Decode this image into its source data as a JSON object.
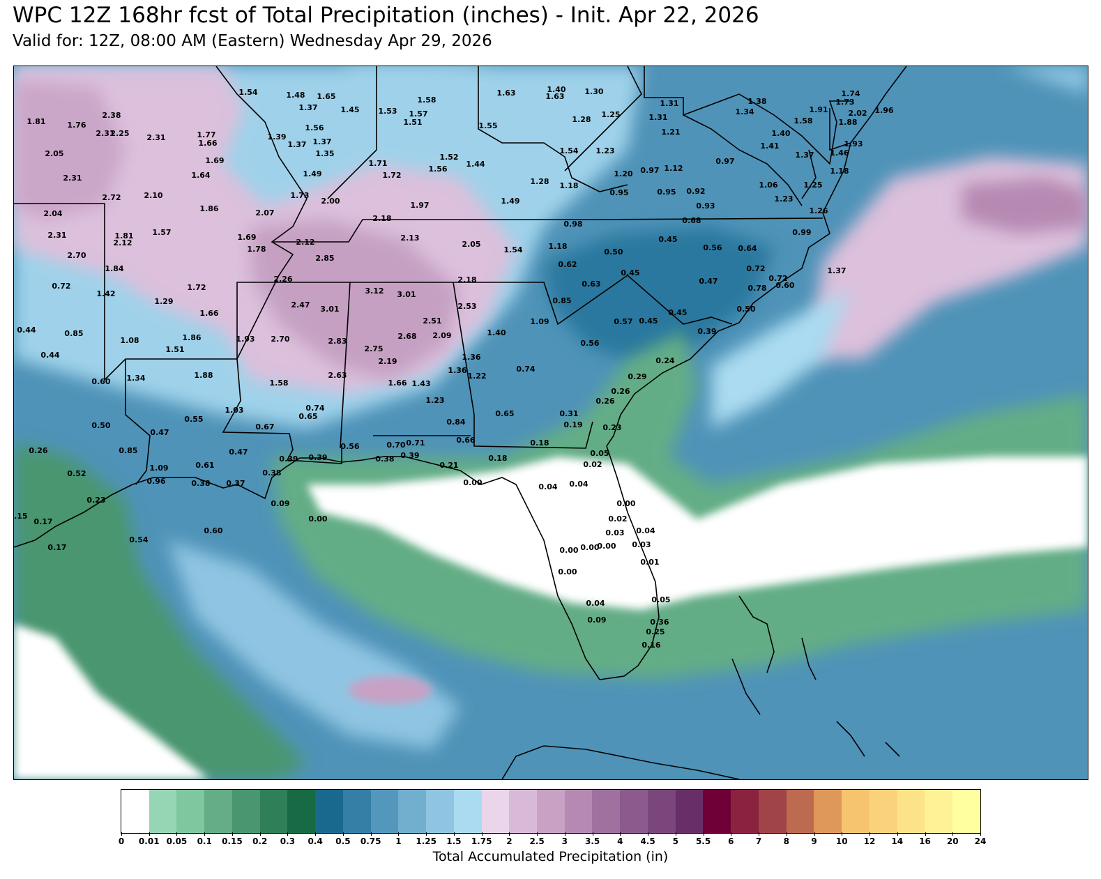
{
  "title": "WPC 12Z 168hr fcst of Total Precipitation (inches) - Init. Apr 22, 2026",
  "subtitle": "Valid for: 12Z, 08:00 AM (Eastern) Wednesday Apr 29, 2026",
  "colorbar": {
    "label": "Total Accumulated Precipitation (in)",
    "ticks": [
      "0",
      "0.01",
      "0.05",
      "0.1",
      "0.15",
      "0.2",
      "0.3",
      "0.4",
      "0.5",
      "0.75",
      "1",
      "1.25",
      "1.5",
      "1.75",
      "2",
      "2.5",
      "3",
      "3.5",
      "4",
      "4.5",
      "5",
      "5.5",
      "6",
      "7",
      "8",
      "9",
      "10",
      "12",
      "14",
      "16",
      "20",
      "24"
    ],
    "colors": [
      "#ffffff",
      "#96d6b4",
      "#7fc79f",
      "#64ad86",
      "#4a9670",
      "#2f7f58",
      "#176a43",
      "#19698f",
      "#357fa6",
      "#5497bd",
      "#72aece",
      "#8fc5e2",
      "#aadbf0",
      "#ead5ea",
      "#d9b9d8",
      "#c8a1c5",
      "#b689b2",
      "#a0709f",
      "#8c5a8d",
      "#7a467c",
      "#682e68",
      "#6e0037",
      "#8a2340",
      "#a14448",
      "#bc6a50",
      "#de985a",
      "#f6c46e",
      "#fad27b",
      "#fde387",
      "#fef296",
      "#ffffa0"
    ]
  },
  "map_values": [
    {
      "v": "1.54",
      "x": 322,
      "y": 37
    },
    {
      "v": "1.48",
      "x": 390,
      "y": 41
    },
    {
      "v": "1.65",
      "x": 434,
      "y": 43
    },
    {
      "v": "1.58",
      "x": 578,
      "y": 48
    },
    {
      "v": "1.63",
      "x": 692,
      "y": 38
    },
    {
      "v": "1.40",
      "x": 764,
      "y": 33
    },
    {
      "v": "1.63",
      "x": 762,
      "y": 43
    },
    {
      "v": "1.30",
      "x": 818,
      "y": 36
    },
    {
      "v": "2.38",
      "x": 126,
      "y": 70
    },
    {
      "v": "1.37",
      "x": 408,
      "y": 59
    },
    {
      "v": "1.45",
      "x": 468,
      "y": 62
    },
    {
      "v": "1.53",
      "x": 522,
      "y": 64
    },
    {
      "v": "1.57",
      "x": 566,
      "y": 68
    },
    {
      "v": "1.25",
      "x": 842,
      "y": 69
    },
    {
      "v": "1.31",
      "x": 926,
      "y": 53
    },
    {
      "v": "1.31",
      "x": 910,
      "y": 73
    },
    {
      "v": "1.81",
      "x": 18,
      "y": 79
    },
    {
      "v": "1.76",
      "x": 76,
      "y": 84
    },
    {
      "v": "2.31",
      "x": 117,
      "y": 96
    },
    {
      "v": "2.25",
      "x": 138,
      "y": 96
    },
    {
      "v": "2.31",
      "x": 190,
      "y": 102
    },
    {
      "v": "1.77",
      "x": 262,
      "y": 98
    },
    {
      "v": "1.39",
      "x": 363,
      "y": 101
    },
    {
      "v": "1.56",
      "x": 417,
      "y": 88
    },
    {
      "v": "1.51",
      "x": 558,
      "y": 80
    },
    {
      "v": "1.55",
      "x": 666,
      "y": 85
    },
    {
      "v": "1.28",
      "x": 800,
      "y": 76
    },
    {
      "v": "1.21",
      "x": 928,
      "y": 94
    },
    {
      "v": "2.05",
      "x": 44,
      "y": 125
    },
    {
      "v": "1.66",
      "x": 264,
      "y": 110
    },
    {
      "v": "1.37",
      "x": 392,
      "y": 112
    },
    {
      "v": "1.37",
      "x": 428,
      "y": 108
    },
    {
      "v": "1.35",
      "x": 432,
      "y": 125
    },
    {
      "v": "1.54",
      "x": 782,
      "y": 121
    },
    {
      "v": "1.23",
      "x": 834,
      "y": 121
    },
    {
      "v": "1.38",
      "x": 1052,
      "y": 50
    },
    {
      "v": "1.34",
      "x": 1034,
      "y": 65
    },
    {
      "v": "1.58",
      "x": 1118,
      "y": 78
    },
    {
      "v": "1.91",
      "x": 1140,
      "y": 62
    },
    {
      "v": "1.73",
      "x": 1178,
      "y": 51
    },
    {
      "v": "1.74",
      "x": 1186,
      "y": 39
    },
    {
      "v": "2.02",
      "x": 1196,
      "y": 67
    },
    {
      "v": "1.96",
      "x": 1234,
      "y": 63
    },
    {
      "v": "1.88",
      "x": 1182,
      "y": 80
    },
    {
      "v": "1.40",
      "x": 1086,
      "y": 96
    },
    {
      "v": "1.41",
      "x": 1070,
      "y": 114
    },
    {
      "v": "1.37",
      "x": 1120,
      "y": 127
    },
    {
      "v": "1.46",
      "x": 1170,
      "y": 124
    },
    {
      "v": "1.93",
      "x": 1190,
      "y": 111
    },
    {
      "v": "1.69",
      "x": 274,
      "y": 135
    },
    {
      "v": "1.71",
      "x": 508,
      "y": 139
    },
    {
      "v": "1.52",
      "x": 610,
      "y": 130
    },
    {
      "v": "1.44",
      "x": 648,
      "y": 140
    },
    {
      "v": "1.56",
      "x": 594,
      "y": 147
    },
    {
      "v": "1.49",
      "x": 414,
      "y": 154
    },
    {
      "v": "1.72",
      "x": 528,
      "y": 156
    },
    {
      "v": "1.20",
      "x": 860,
      "y": 154
    },
    {
      "v": "0.97",
      "x": 898,
      "y": 149
    },
    {
      "v": "1.12",
      "x": 932,
      "y": 146
    },
    {
      "v": "0.97",
      "x": 1006,
      "y": 136
    },
    {
      "v": "1.18",
      "x": 1170,
      "y": 150
    },
    {
      "v": "2.31",
      "x": 70,
      "y": 160
    },
    {
      "v": "1.64",
      "x": 254,
      "y": 156
    },
    {
      "v": "1.28",
      "x": 740,
      "y": 165
    },
    {
      "v": "1.18",
      "x": 782,
      "y": 171
    },
    {
      "v": "1.06",
      "x": 1068,
      "y": 170
    },
    {
      "v": "1.25",
      "x": 1132,
      "y": 170
    },
    {
      "v": "2.72",
      "x": 126,
      "y": 188
    },
    {
      "v": "2.10",
      "x": 186,
      "y": 185
    },
    {
      "v": "1.73",
      "x": 396,
      "y": 185
    },
    {
      "v": "2.00",
      "x": 440,
      "y": 193
    },
    {
      "v": "1.97",
      "x": 568,
      "y": 199
    },
    {
      "v": "1.49",
      "x": 698,
      "y": 193
    },
    {
      "v": "0.95",
      "x": 854,
      "y": 181
    },
    {
      "v": "0.95",
      "x": 922,
      "y": 180
    },
    {
      "v": "0.92",
      "x": 964,
      "y": 179
    },
    {
      "v": "1.23",
      "x": 1090,
      "y": 190
    },
    {
      "v": "0.93",
      "x": 978,
      "y": 200
    },
    {
      "v": "2.04",
      "x": 42,
      "y": 211
    },
    {
      "v": "1.86",
      "x": 266,
      "y": 204
    },
    {
      "v": "2.07",
      "x": 346,
      "y": 210
    },
    {
      "v": "2.18",
      "x": 514,
      "y": 218
    },
    {
      "v": "0.98",
      "x": 788,
      "y": 226
    },
    {
      "v": "0.68",
      "x": 958,
      "y": 221
    },
    {
      "v": "1.26",
      "x": 1140,
      "y": 207
    },
    {
      "v": "2.31",
      "x": 48,
      "y": 242
    },
    {
      "v": "1.81",
      "x": 144,
      "y": 243
    },
    {
      "v": "1.57",
      "x": 198,
      "y": 238
    },
    {
      "v": "2.12",
      "x": 142,
      "y": 253
    },
    {
      "v": "1.69",
      "x": 320,
      "y": 245
    },
    {
      "v": "2.12",
      "x": 404,
      "y": 252
    },
    {
      "v": "2.13",
      "x": 554,
      "y": 246
    },
    {
      "v": "2.05",
      "x": 642,
      "y": 255
    },
    {
      "v": "1.54",
      "x": 702,
      "y": 263
    },
    {
      "v": "1.18",
      "x": 766,
      "y": 258
    },
    {
      "v": "0.45",
      "x": 924,
      "y": 248
    },
    {
      "v": "0.56",
      "x": 988,
      "y": 260
    },
    {
      "v": "0.64",
      "x": 1038,
      "y": 261
    },
    {
      "v": "0.99",
      "x": 1116,
      "y": 238
    },
    {
      "v": "1.78",
      "x": 334,
      "y": 262
    },
    {
      "v": "2.70",
      "x": 76,
      "y": 271
    },
    {
      "v": "2.85",
      "x": 432,
      "y": 275
    },
    {
      "v": "0.50",
      "x": 846,
      "y": 266
    },
    {
      "v": "0.62",
      "x": 780,
      "y": 284
    },
    {
      "v": "1.84",
      "x": 130,
      "y": 290
    },
    {
      "v": "0.45",
      "x": 870,
      "y": 296
    },
    {
      "v": "0.72",
      "x": 1050,
      "y": 290
    },
    {
      "v": "1.37",
      "x": 1166,
      "y": 293
    },
    {
      "v": "2.26",
      "x": 372,
      "y": 305
    },
    {
      "v": "2.18",
      "x": 636,
      "y": 306
    },
    {
      "v": "0.63",
      "x": 814,
      "y": 312
    },
    {
      "v": "0.47",
      "x": 982,
      "y": 308
    },
    {
      "v": "0.72",
      "x": 1082,
      "y": 304
    },
    {
      "v": "0.60",
      "x": 1092,
      "y": 314
    },
    {
      "v": "0.78",
      "x": 1052,
      "y": 318
    },
    {
      "v": "0.72",
      "x": 54,
      "y": 315
    },
    {
      "v": "1.42",
      "x": 118,
      "y": 326
    },
    {
      "v": "1.72",
      "x": 248,
      "y": 317
    },
    {
      "v": "3.12",
      "x": 503,
      "y": 322
    },
    {
      "v": "3.01",
      "x": 549,
      "y": 327
    },
    {
      "v": "2.53",
      "x": 636,
      "y": 344
    },
    {
      "v": "0.85",
      "x": 772,
      "y": 336
    },
    {
      "v": "1.29",
      "x": 201,
      "y": 337
    },
    {
      "v": "2.47",
      "x": 397,
      "y": 342
    },
    {
      "v": "3.01",
      "x": 439,
      "y": 348
    },
    {
      "v": "1.66",
      "x": 266,
      "y": 354
    },
    {
      "v": "2.51",
      "x": 586,
      "y": 365
    },
    {
      "v": "1.09",
      "x": 740,
      "y": 366
    },
    {
      "v": "0.57",
      "x": 860,
      "y": 366
    },
    {
      "v": "0.45",
      "x": 896,
      "y": 365
    },
    {
      "v": "0.45",
      "x": 938,
      "y": 353
    },
    {
      "v": "0.50",
      "x": 1036,
      "y": 348
    },
    {
      "v": "0.44",
      "x": 4,
      "y": 378
    },
    {
      "v": "0.85",
      "x": 72,
      "y": 383
    },
    {
      "v": "1.08",
      "x": 152,
      "y": 393
    },
    {
      "v": "1.86",
      "x": 241,
      "y": 389
    },
    {
      "v": "1.93",
      "x": 318,
      "y": 391
    },
    {
      "v": "2.70",
      "x": 368,
      "y": 391
    },
    {
      "v": "2.83",
      "x": 450,
      "y": 394
    },
    {
      "v": "2.68",
      "x": 550,
      "y": 387
    },
    {
      "v": "2.09",
      "x": 600,
      "y": 386
    },
    {
      "v": "1.40",
      "x": 678,
      "y": 382
    },
    {
      "v": "0.56",
      "x": 812,
      "y": 397
    },
    {
      "v": "0.39",
      "x": 980,
      "y": 380
    },
    {
      "v": "1.51",
      "x": 217,
      "y": 406
    },
    {
      "v": "2.75",
      "x": 502,
      "y": 405
    },
    {
      "v": "0.44",
      "x": 38,
      "y": 414
    },
    {
      "v": "1.36",
      "x": 642,
      "y": 417
    },
    {
      "v": "2.19",
      "x": 522,
      "y": 423
    },
    {
      "v": "0.74",
      "x": 720,
      "y": 434
    },
    {
      "v": "0.24",
      "x": 920,
      "y": 422
    },
    {
      "v": "1.34",
      "x": 161,
      "y": 447
    },
    {
      "v": "1.88",
      "x": 258,
      "y": 443
    },
    {
      "v": "2.63",
      "x": 450,
      "y": 443
    },
    {
      "v": "1.36",
      "x": 622,
      "y": 436
    },
    {
      "v": "1.22",
      "x": 650,
      "y": 444
    },
    {
      "v": "0.29",
      "x": 880,
      "y": 445
    },
    {
      "v": "0.60",
      "x": 111,
      "y": 452
    },
    {
      "v": "1.66",
      "x": 536,
      "y": 454
    },
    {
      "v": "1.43",
      "x": 570,
      "y": 455
    },
    {
      "v": "1.58",
      "x": 366,
      "y": 454
    },
    {
      "v": "0.26",
      "x": 856,
      "y": 466
    },
    {
      "v": "1.23",
      "x": 590,
      "y": 479
    },
    {
      "v": "0.26",
      "x": 834,
      "y": 480
    },
    {
      "v": "1.03",
      "x": 302,
      "y": 493
    },
    {
      "v": "0.74",
      "x": 418,
      "y": 490
    },
    {
      "v": "0.65",
      "x": 408,
      "y": 502
    },
    {
      "v": "0.65",
      "x": 690,
      "y": 498
    },
    {
      "v": "0.31",
      "x": 782,
      "y": 498
    },
    {
      "v": "0.55",
      "x": 244,
      "y": 506
    },
    {
      "v": "0.84",
      "x": 620,
      "y": 510
    },
    {
      "v": "0.19",
      "x": 788,
      "y": 514
    },
    {
      "v": "0.23",
      "x": 844,
      "y": 518
    },
    {
      "v": "0.50",
      "x": 111,
      "y": 515
    },
    {
      "v": "0.67",
      "x": 346,
      "y": 517
    },
    {
      "v": "0.47",
      "x": 195,
      "y": 525
    },
    {
      "v": "0.66",
      "x": 634,
      "y": 536
    },
    {
      "v": "0.18",
      "x": 740,
      "y": 540
    },
    {
      "v": "0.70",
      "x": 534,
      "y": 543
    },
    {
      "v": "0.71",
      "x": 562,
      "y": 540
    },
    {
      "v": "0.56",
      "x": 468,
      "y": 545
    },
    {
      "v": "0.26",
      "x": 21,
      "y": 551
    },
    {
      "v": "0.85",
      "x": 150,
      "y": 551
    },
    {
      "v": "0.47",
      "x": 308,
      "y": 553
    },
    {
      "v": "0.05",
      "x": 826,
      "y": 555
    },
    {
      "v": "0.39",
      "x": 380,
      "y": 563
    },
    {
      "v": "0.39",
      "x": 422,
      "y": 561
    },
    {
      "v": "0.38",
      "x": 518,
      "y": 563
    },
    {
      "v": "0.39",
      "x": 554,
      "y": 558
    },
    {
      "v": "0.18",
      "x": 680,
      "y": 562
    },
    {
      "v": "0.21",
      "x": 610,
      "y": 572
    },
    {
      "v": "0.02",
      "x": 816,
      "y": 571
    },
    {
      "v": "1.09",
      "x": 194,
      "y": 576
    },
    {
      "v": "0.61",
      "x": 260,
      "y": 572
    },
    {
      "v": "0.52",
      "x": 76,
      "y": 584
    },
    {
      "v": "0.38",
      "x": 356,
      "y": 583
    },
    {
      "v": "0.96",
      "x": 190,
      "y": 595
    },
    {
      "v": "0.38",
      "x": 254,
      "y": 598
    },
    {
      "v": "0.37",
      "x": 304,
      "y": 598
    },
    {
      "v": "0.00",
      "x": 644,
      "y": 597
    },
    {
      "v": "0.04",
      "x": 752,
      "y": 603
    },
    {
      "v": "0.04",
      "x": 796,
      "y": 599
    },
    {
      "v": "0.23",
      "x": 104,
      "y": 622
    },
    {
      "v": "0.09",
      "x": 368,
      "y": 627
    },
    {
      "v": "0.00",
      "x": 864,
      "y": 627
    },
    {
      "v": "0.00",
      "x": 422,
      "y": 649
    },
    {
      "v": "0.02",
      "x": 852,
      "y": 649
    },
    {
      "v": "0.15",
      "x": -8,
      "y": 645
    },
    {
      "v": "0.17",
      "x": 28,
      "y": 653
    },
    {
      "v": "0.60",
      "x": 272,
      "y": 666
    },
    {
      "v": "0.03",
      "x": 848,
      "y": 669
    },
    {
      "v": "0.04",
      "x": 892,
      "y": 666
    },
    {
      "v": "0.54",
      "x": 165,
      "y": 679
    },
    {
      "v": "0.17",
      "x": 48,
      "y": 690
    },
    {
      "v": "0.00",
      "x": 782,
      "y": 694
    },
    {
      "v": "0.00",
      "x": 812,
      "y": 690
    },
    {
      "v": "0.00",
      "x": 836,
      "y": 688
    },
    {
      "v": "0.03",
      "x": 886,
      "y": 686
    },
    {
      "v": "0.01",
      "x": 898,
      "y": 711
    },
    {
      "v": "0.00",
      "x": 780,
      "y": 725
    },
    {
      "v": "0.04",
      "x": 820,
      "y": 770
    },
    {
      "v": "0.05",
      "x": 914,
      "y": 765
    },
    {
      "v": "0.09",
      "x": 822,
      "y": 794
    },
    {
      "v": "0.36",
      "x": 912,
      "y": 797
    },
    {
      "v": "0.25",
      "x": 906,
      "y": 811
    },
    {
      "v": "0.16",
      "x": 900,
      "y": 830
    }
  ]
}
